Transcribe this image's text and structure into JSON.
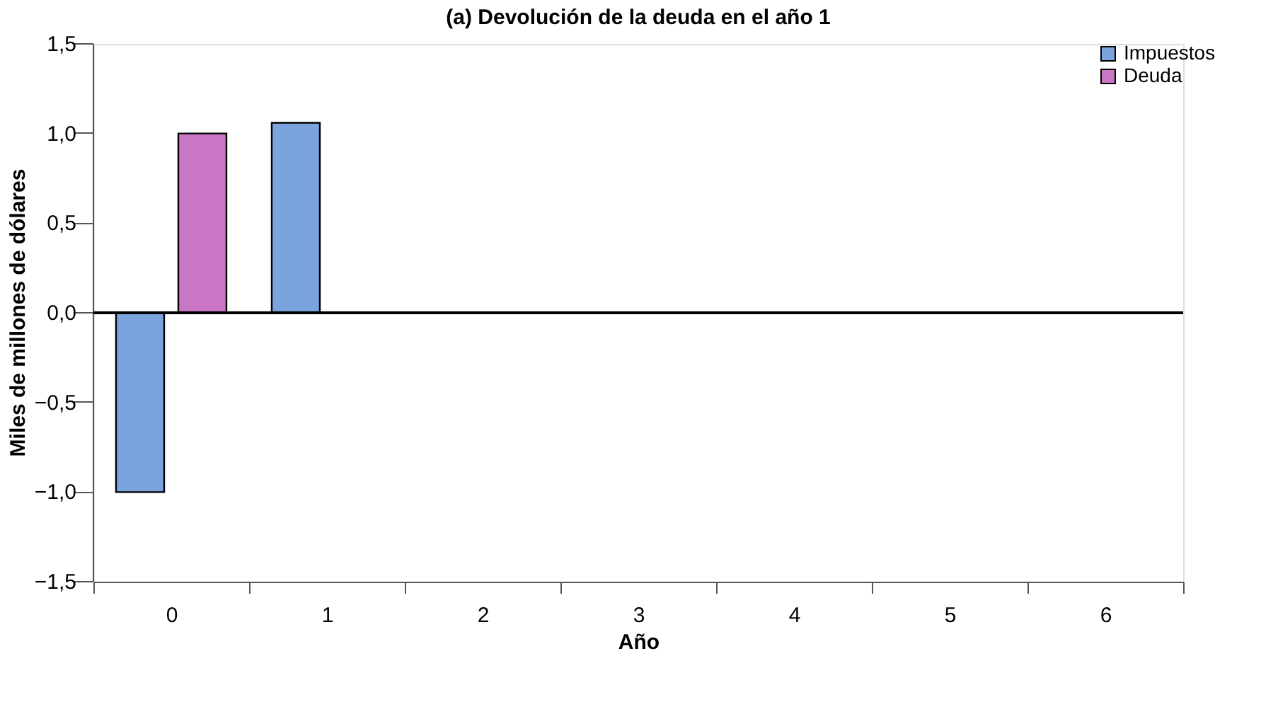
{
  "chart_data": {
    "type": "bar",
    "title": "(a) Devolución de la deuda en el año 1",
    "xlabel": "Año",
    "ylabel": "Miles de millones de dólares",
    "categories": [
      "0",
      "1",
      "2",
      "3",
      "4",
      "5",
      "6"
    ],
    "series": [
      {
        "name": "Impuestos",
        "color": "#7ba3dd",
        "values": [
          -1.0,
          1.06,
          null,
          null,
          null,
          null,
          null
        ]
      },
      {
        "name": "Deuda",
        "color": "#c977c4",
        "values": [
          1.0,
          null,
          null,
          null,
          null,
          null,
          null
        ]
      }
    ],
    "ylim": [
      -1.5,
      1.5
    ],
    "yticks": [
      {
        "value": -1.5,
        "label": "−1,5"
      },
      {
        "value": -1.0,
        "label": "−1,0"
      },
      {
        "value": -0.5,
        "label": "−0,5"
      },
      {
        "value": 0,
        "label": "0,0"
      },
      {
        "value": 0.5,
        "label": "0,5"
      },
      {
        "value": 1.0,
        "label": "1,0"
      },
      {
        "value": 1.5,
        "label": "1,5"
      }
    ],
    "ref_lines": [
      {
        "axis": "y",
        "value": 0,
        "color": "#000000"
      }
    ],
    "grid": false,
    "legend": "right"
  }
}
